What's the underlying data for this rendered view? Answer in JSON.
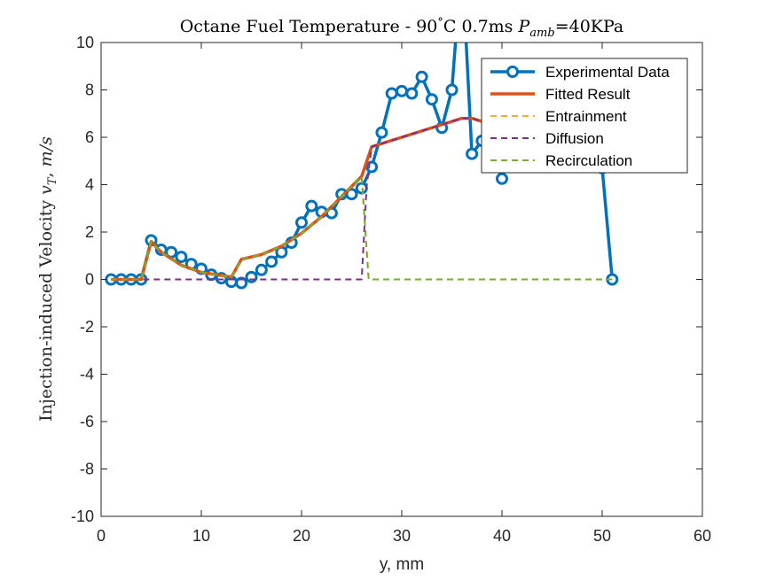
{
  "chart_data": {
    "type": "line",
    "title": "Octane Fuel Temperature - 90°C 0.7ms P_amb=40KPa",
    "title_parts": {
      "pre": "Octane Fuel Temperature - 90",
      "deg": "°",
      "mid": "C 0.7ms ",
      "p": "P",
      "sub": "amb",
      "post": "=40KPa"
    },
    "xlabel": "y, mm",
    "ylabel_parts": {
      "pre": "Injection-induced Velocity ",
      "v": "v",
      "sub": "T",
      "post": ", ",
      "unit": "m/s"
    },
    "xlim": [
      0,
      60
    ],
    "ylim": [
      -10,
      10
    ],
    "xticks": [
      0,
      10,
      20,
      30,
      40,
      50,
      60
    ],
    "yticks": [
      -10,
      -8,
      -6,
      -4,
      -2,
      0,
      2,
      4,
      6,
      8,
      10
    ],
    "grid": false,
    "legend_position": "top-right",
    "series": [
      {
        "name": "Experimental Data",
        "style": "line-marker",
        "color": "#0072BD",
        "x": [
          1,
          2,
          3,
          4,
          5,
          6,
          7,
          8,
          9,
          10,
          11,
          12,
          13,
          14,
          15,
          16,
          17,
          18,
          19,
          20,
          21,
          22,
          23,
          24,
          25,
          26,
          27,
          28,
          29,
          30,
          31,
          32,
          33,
          34,
          35,
          36,
          37,
          38,
          39,
          40,
          41,
          42,
          43,
          44,
          45,
          46,
          47,
          48,
          49,
          50,
          51
        ],
        "y": [
          0,
          0,
          0,
          0,
          1.65,
          1.25,
          1.15,
          0.95,
          0.65,
          0.45,
          0.2,
          0.05,
          -0.1,
          -0.15,
          0.1,
          0.4,
          0.75,
          1.15,
          1.55,
          2.4,
          3.1,
          2.85,
          2.8,
          3.6,
          3.6,
          3.85,
          4.75,
          6.2,
          7.85,
          7.95,
          7.85,
          8.55,
          7.6,
          6.4,
          8.0,
          13.5,
          5.3,
          5.85,
          5.5,
          4.25,
          6.6,
          6.55,
          6.5,
          6.35,
          6.2,
          6.0,
          5.8,
          5.5,
          5.2,
          4.7,
          0
        ]
      },
      {
        "name": "Fitted Result",
        "style": "solid",
        "color": "#D95319",
        "x": [
          1,
          4,
          5,
          6,
          8,
          10,
          13,
          14,
          16,
          18,
          20,
          22,
          24,
          26,
          27,
          36,
          37,
          40
        ],
        "y": [
          0,
          0,
          1.6,
          1.15,
          0.6,
          0.3,
          0.1,
          0.85,
          1.05,
          1.4,
          1.95,
          2.65,
          3.5,
          4.35,
          5.6,
          6.8,
          6.8,
          6.4
        ]
      },
      {
        "name": "Entrainment",
        "style": "dashed",
        "color": "#EDB120",
        "x": [
          1,
          4,
          5,
          6,
          8,
          10,
          13,
          14,
          16,
          18,
          20,
          22,
          24,
          26,
          26.7,
          51
        ],
        "y": [
          0,
          0,
          1.6,
          1.15,
          0.6,
          0.3,
          0.1,
          0.85,
          1.05,
          1.4,
          1.95,
          2.65,
          3.5,
          4.35,
          0,
          0
        ]
      },
      {
        "name": "Diffusion",
        "style": "dashed",
        "color": "#7E2F8E",
        "x": [
          1,
          26,
          26.5,
          27,
          36,
          37,
          40
        ],
        "y": [
          0,
          0,
          3.95,
          5.6,
          6.8,
          6.8,
          6.4
        ]
      },
      {
        "name": "Recirculation",
        "style": "dashed",
        "color": "#77AC30",
        "x": [
          1,
          4,
          5,
          6,
          8,
          10,
          13,
          14,
          16,
          18,
          20,
          22,
          24,
          26,
          26.7,
          51
        ],
        "y": [
          0,
          0,
          1.6,
          1.15,
          0.6,
          0.3,
          0.1,
          0.85,
          1.05,
          1.4,
          1.95,
          2.65,
          3.5,
          4.35,
          0,
          0
        ]
      }
    ]
  }
}
